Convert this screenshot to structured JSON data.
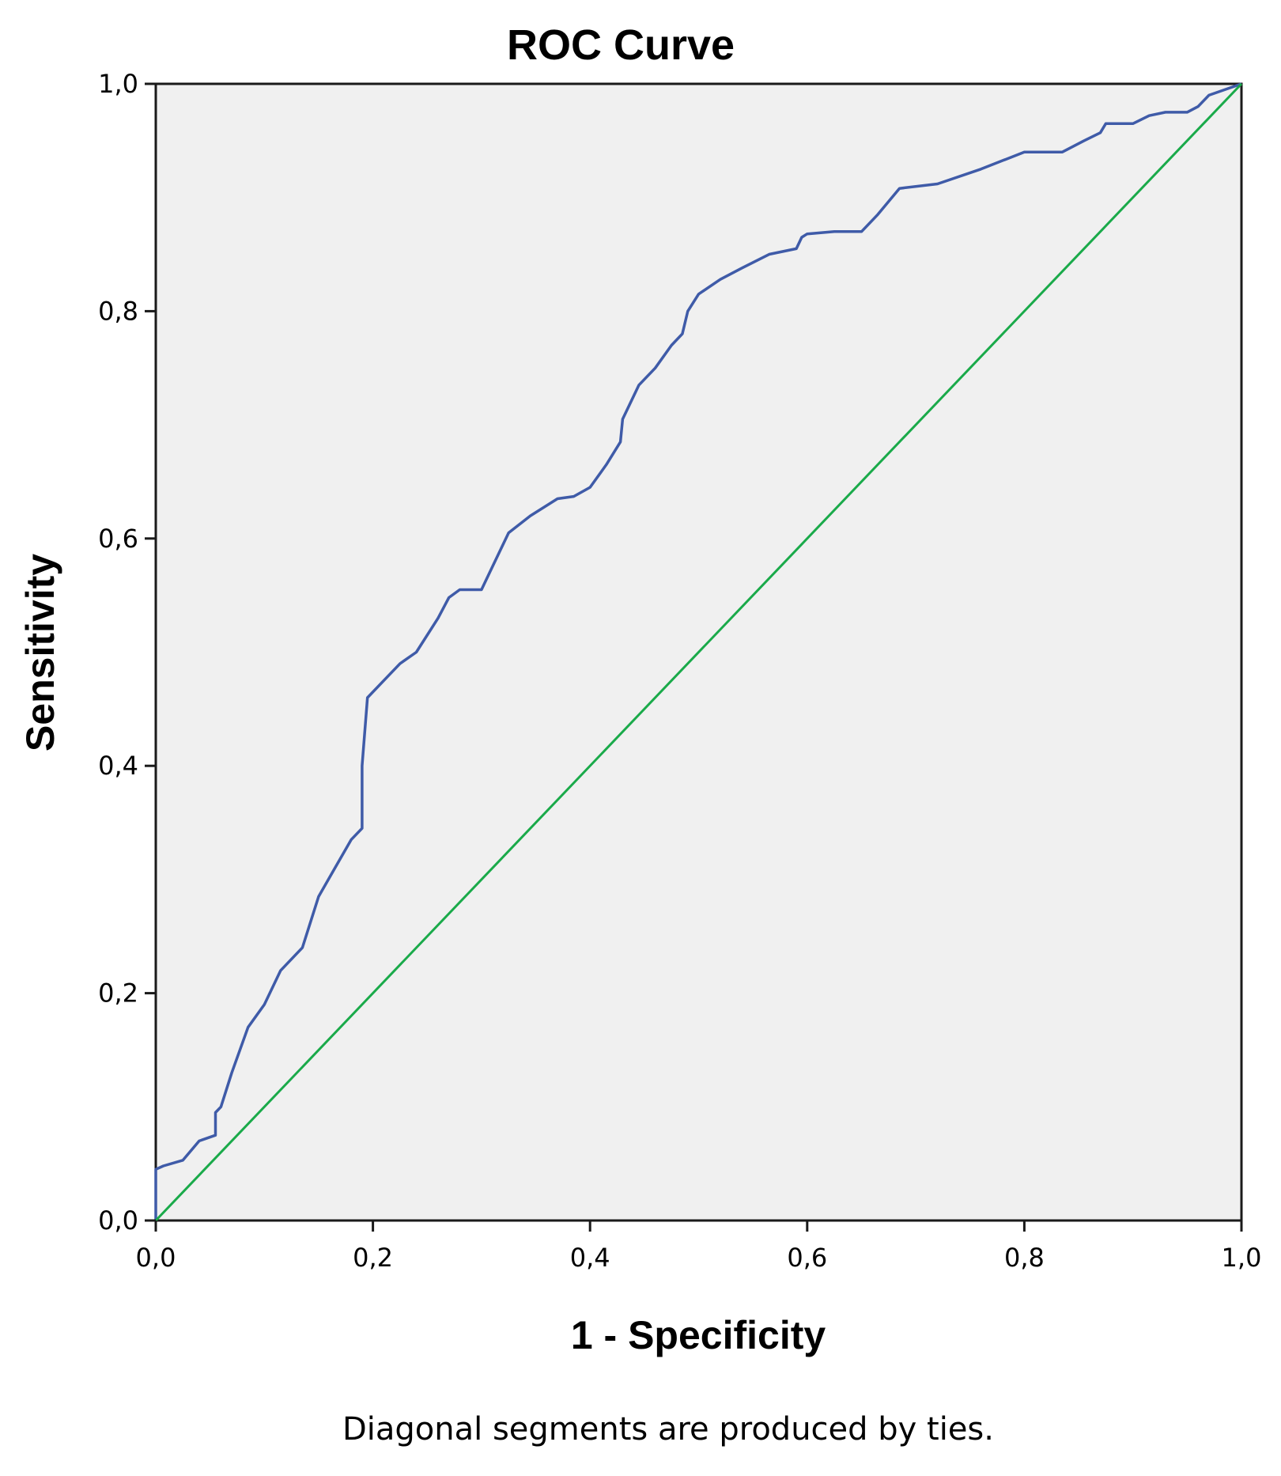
{
  "chart_data": {
    "type": "line",
    "title": "ROC Curve",
    "xlabel": "1 - Specificity",
    "ylabel": "Sensitivity",
    "footnote": "Diagonal segments are produced by ties.",
    "xlim": [
      0,
      1
    ],
    "ylim": [
      0,
      1
    ],
    "x_ticks": [
      0,
      0.2,
      0.4,
      0.6,
      0.8,
      1.0
    ],
    "y_ticks": [
      0,
      0.2,
      0.4,
      0.6,
      0.8,
      1.0
    ],
    "x_tick_labels": [
      "0,0",
      "0,2",
      "0,4",
      "0,6",
      "0,8",
      "1,0"
    ],
    "y_tick_labels": [
      "0,0",
      "0,2",
      "0,4",
      "0,6",
      "0,8",
      "1,0"
    ],
    "grid": false,
    "plot_background": "#f0f0f0",
    "series": [
      {
        "color": "#3f5ba8",
        "x": [
          0,
          0,
          0.007,
          0.025,
          0.04,
          0.055,
          0.055,
          0.06,
          0.07,
          0.085,
          0.1,
          0.115,
          0.135,
          0.15,
          0.165,
          0.18,
          0.19,
          0.19,
          0.195,
          0.21,
          0.225,
          0.24,
          0.26,
          0.27,
          0.28,
          0.3,
          0.31,
          0.325,
          0.345,
          0.37,
          0.385,
          0.4,
          0.415,
          0.428,
          0.43,
          0.445,
          0.46,
          0.475,
          0.485,
          0.49,
          0.5,
          0.52,
          0.54,
          0.565,
          0.59,
          0.595,
          0.6,
          0.625,
          0.65,
          0.665,
          0.685,
          0.72,
          0.76,
          0.8,
          0.835,
          0.855,
          0.87,
          0.875,
          0.9,
          0.915,
          0.93,
          0.95,
          0.96,
          0.97,
          1.0
        ],
        "y": [
          0,
          0.045,
          0.048,
          0.053,
          0.07,
          0.075,
          0.095,
          0.1,
          0.13,
          0.17,
          0.19,
          0.22,
          0.24,
          0.285,
          0.31,
          0.335,
          0.345,
          0.4,
          0.46,
          0.475,
          0.49,
          0.5,
          0.53,
          0.548,
          0.555,
          0.555,
          0.575,
          0.605,
          0.62,
          0.635,
          0.637,
          0.645,
          0.665,
          0.685,
          0.705,
          0.735,
          0.75,
          0.77,
          0.78,
          0.8,
          0.815,
          0.828,
          0.838,
          0.85,
          0.855,
          0.865,
          0.868,
          0.87,
          0.87,
          0.885,
          0.908,
          0.912,
          0.925,
          0.94,
          0.94,
          0.95,
          0.957,
          0.965,
          0.965,
          0.972,
          0.975,
          0.975,
          0.98,
          0.99,
          1.0
        ]
      },
      {
        "color": "#1aaa4a",
        "x": [
          0,
          1
        ],
        "y": [
          0,
          1
        ]
      }
    ]
  }
}
